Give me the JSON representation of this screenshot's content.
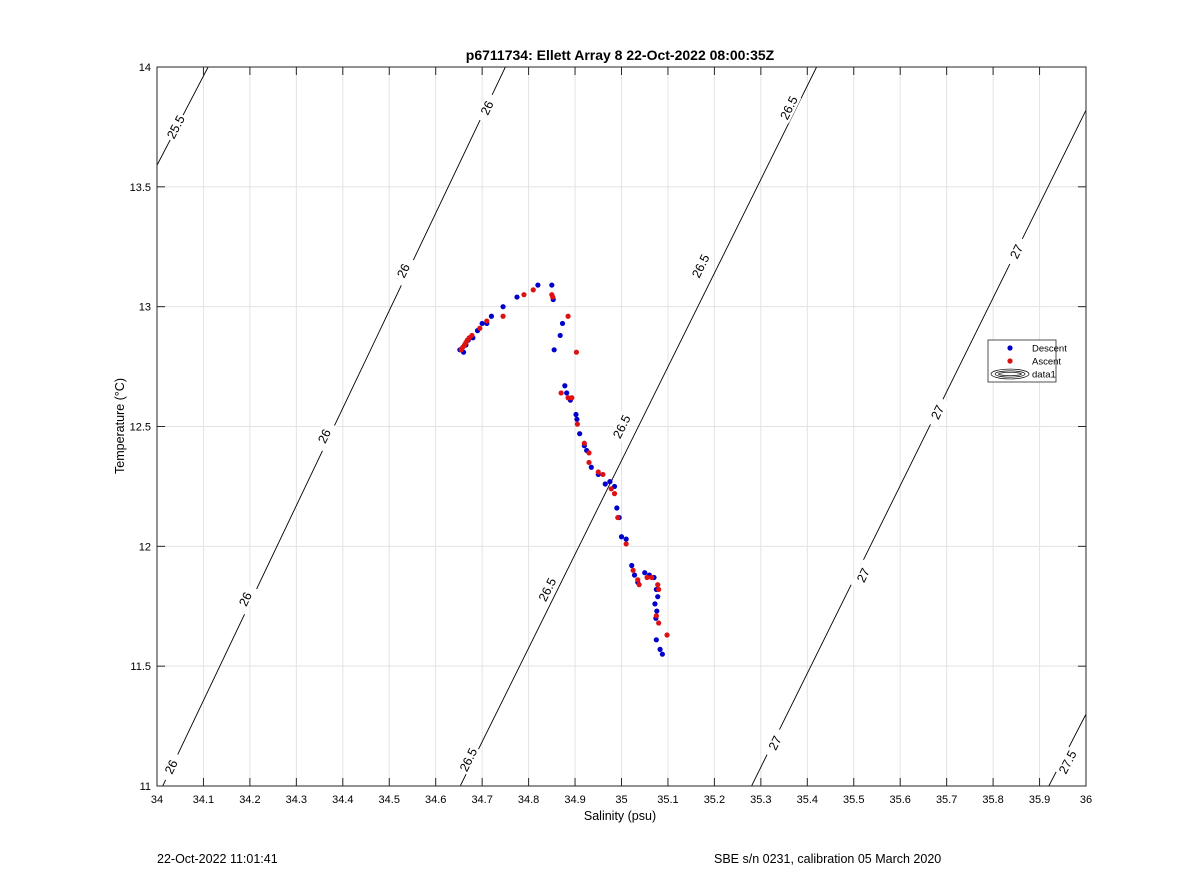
{
  "chart_data": {
    "type": "scatter",
    "title": "p6711734: Ellett Array 8 22-Oct-2022 08:00:35Z",
    "xlabel": "Salinity (psu)",
    "ylabel": "Temperature (°C)",
    "xlim": [
      34,
      36
    ],
    "ylim": [
      11,
      14
    ],
    "xticks": [
      "34",
      "34.1",
      "34.2",
      "34.3",
      "34.4",
      "34.5",
      "34.6",
      "34.7",
      "34.8",
      "34.9",
      "35",
      "35.1",
      "35.2",
      "35.3",
      "35.4",
      "35.5",
      "35.6",
      "35.7",
      "35.8",
      "35.9",
      "36"
    ],
    "yticks": [
      "11",
      "11.5",
      "12",
      "12.5",
      "13",
      "13.5",
      "14"
    ],
    "grid": true,
    "legend_position": "right",
    "legend": [
      {
        "label": "Descent",
        "color": "#0000cc",
        "marker": "dot"
      },
      {
        "label": "Ascent",
        "color": "#dd1111",
        "marker": "dot"
      },
      {
        "label": "data1",
        "color": "#000000",
        "marker": "contour"
      }
    ],
    "contours": [
      {
        "level": "25.5",
        "points": [
          [
            34,
            13.59
          ],
          [
            34.11,
            14.0
          ]
        ],
        "labels": [
          [
            34.04,
            13.75
          ]
        ]
      },
      {
        "level": "26",
        "points": [
          [
            34.0,
            10.95
          ],
          [
            34.75,
            14.0
          ]
        ],
        "labels": [
          [
            34.03,
            11.08
          ],
          [
            34.19,
            11.78
          ],
          [
            34.36,
            12.46
          ],
          [
            34.53,
            13.15
          ],
          [
            34.71,
            13.83
          ]
        ]
      },
      {
        "level": "26.5",
        "points": [
          [
            34.64,
            10.95
          ],
          [
            35.42,
            14.0
          ]
        ],
        "labels": [
          [
            34.67,
            11.11
          ],
          [
            34.84,
            11.82
          ],
          [
            35.0,
            12.5
          ],
          [
            35.17,
            13.17
          ],
          [
            35.36,
            13.83
          ]
        ]
      },
      {
        "level": "27",
        "points": [
          [
            35.28,
            11.0
          ],
          [
            36.0,
            13.82
          ]
        ],
        "labels": [
          [
            35.33,
            11.18
          ],
          [
            35.52,
            11.88
          ],
          [
            35.68,
            12.56
          ],
          [
            35.85,
            13.23
          ]
        ]
      },
      {
        "level": "27.5",
        "points": [
          [
            35.92,
            11.0
          ],
          [
            36.0,
            11.3
          ]
        ],
        "labels": [
          [
            35.96,
            11.1
          ]
        ]
      }
    ],
    "series": [
      {
        "name": "Descent",
        "color": "#0000cc",
        "points": [
          [
            34.652,
            12.82
          ],
          [
            34.66,
            12.81
          ],
          [
            34.665,
            12.84
          ],
          [
            34.67,
            12.86
          ],
          [
            34.68,
            12.87
          ],
          [
            34.69,
            12.9
          ],
          [
            34.7,
            12.93
          ],
          [
            34.71,
            12.93
          ],
          [
            34.72,
            12.96
          ],
          [
            34.745,
            13.0
          ],
          [
            34.775,
            13.04
          ],
          [
            34.82,
            13.09
          ],
          [
            34.85,
            13.09
          ],
          [
            34.853,
            13.03
          ],
          [
            34.855,
            12.82
          ],
          [
            34.868,
            12.88
          ],
          [
            34.873,
            12.93
          ],
          [
            34.878,
            12.67
          ],
          [
            34.882,
            12.64
          ],
          [
            34.89,
            12.61
          ],
          [
            34.902,
            12.55
          ],
          [
            34.904,
            12.53
          ],
          [
            34.91,
            12.47
          ],
          [
            34.92,
            12.42
          ],
          [
            34.925,
            12.4
          ],
          [
            34.935,
            12.33
          ],
          [
            34.95,
            12.3
          ],
          [
            34.965,
            12.26
          ],
          [
            34.975,
            12.27
          ],
          [
            34.985,
            12.25
          ],
          [
            34.99,
            12.16
          ],
          [
            34.995,
            12.12
          ],
          [
            35.0,
            12.04
          ],
          [
            35.01,
            12.03
          ],
          [
            35.022,
            11.92
          ],
          [
            35.028,
            11.88
          ],
          [
            35.035,
            11.85
          ],
          [
            35.05,
            11.89
          ],
          [
            35.06,
            11.88
          ],
          [
            35.07,
            11.87
          ],
          [
            35.075,
            11.82
          ],
          [
            35.078,
            11.79
          ],
          [
            35.072,
            11.76
          ],
          [
            35.076,
            11.73
          ],
          [
            35.074,
            11.7
          ],
          [
            35.075,
            11.61
          ],
          [
            35.083,
            11.57
          ],
          [
            35.088,
            11.55
          ]
        ]
      },
      {
        "name": "Ascent",
        "color": "#dd1111",
        "points": [
          [
            34.655,
            12.82
          ],
          [
            34.658,
            12.83
          ],
          [
            34.662,
            12.84
          ],
          [
            34.665,
            12.85
          ],
          [
            34.668,
            12.86
          ],
          [
            34.672,
            12.87
          ],
          [
            34.678,
            12.88
          ],
          [
            34.695,
            12.91
          ],
          [
            34.71,
            12.94
          ],
          [
            34.745,
            12.96
          ],
          [
            34.79,
            13.05
          ],
          [
            34.81,
            13.07
          ],
          [
            34.85,
            13.05
          ],
          [
            34.852,
            13.04
          ],
          [
            34.885,
            12.96
          ],
          [
            34.903,
            12.81
          ],
          [
            34.87,
            12.64
          ],
          [
            34.885,
            12.62
          ],
          [
            34.893,
            12.62
          ],
          [
            34.905,
            12.51
          ],
          [
            34.92,
            12.43
          ],
          [
            34.93,
            12.39
          ],
          [
            34.93,
            12.35
          ],
          [
            34.95,
            12.31
          ],
          [
            34.96,
            12.3
          ],
          [
            34.978,
            12.24
          ],
          [
            34.985,
            12.22
          ],
          [
            34.992,
            12.12
          ],
          [
            35.01,
            12.01
          ],
          [
            35.025,
            11.9
          ],
          [
            35.035,
            11.86
          ],
          [
            35.038,
            11.84
          ],
          [
            35.055,
            11.87
          ],
          [
            35.065,
            11.87
          ],
          [
            35.078,
            11.84
          ],
          [
            35.08,
            11.82
          ],
          [
            35.075,
            11.71
          ],
          [
            35.08,
            11.68
          ],
          [
            35.098,
            11.63
          ]
        ]
      }
    ]
  },
  "footer": {
    "left_text": "22-Oct-2022 11:01:41",
    "right_text": "SBE s/n 0231, calibration 05 March 2020"
  }
}
